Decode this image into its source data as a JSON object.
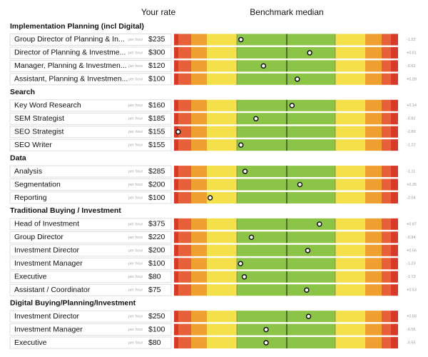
{
  "chart_data": {
    "type": "benchmark-table",
    "header": {
      "rate": "Your rate",
      "benchmark": "Benchmark median"
    },
    "xlim": [
      -3,
      3
    ],
    "unit": "per hour",
    "sections": [
      {
        "title": "Implementation Planning (incl Digital)",
        "rows": [
          {
            "role": "Group Director of Planning & In...",
            "rate": "$235",
            "score": -1.22,
            "score_label": "-1.22"
          },
          {
            "role": "Director of Planning & Investme...",
            "rate": "$300",
            "score": 0.61,
            "score_label": "+0.61"
          },
          {
            "role": "Manager, Planning & Investmen...",
            "rate": "$120",
            "score": -0.62,
            "score_label": "-0.62"
          },
          {
            "role": "Assistant, Planning & Investmen...",
            "rate": "$100",
            "score": 0.28,
            "score_label": "+0.28"
          }
        ]
      },
      {
        "title": "Search",
        "rows": [
          {
            "role": "Key Word Research",
            "rate": "$160",
            "score": 0.14,
            "score_label": "+0.14"
          },
          {
            "role": "SEM Strategist",
            "rate": "$185",
            "score": -0.82,
            "score_label": "-0.82"
          },
          {
            "role": "SEO Strategist",
            "rate": "$155",
            "score": -2.89,
            "score_label": "-2.89"
          },
          {
            "role": "SEO Writer",
            "rate": "$155",
            "score": -1.22,
            "score_label": "-1.22"
          }
        ]
      },
      {
        "title": "Data",
        "rows": [
          {
            "role": "Analysis",
            "rate": "$285",
            "score": -1.11,
            "score_label": "-1.11"
          },
          {
            "role": "Segmentation",
            "rate": "$200",
            "score": 0.35,
            "score_label": "+0.35"
          },
          {
            "role": "Reporting",
            "rate": "$100",
            "score": -2.04,
            "score_label": "-2.04"
          }
        ]
      },
      {
        "title": "Traditional Buying / Investment",
        "rows": [
          {
            "role": "Head of Investment",
            "rate": "$375",
            "score": 0.87,
            "score_label": "+0.87"
          },
          {
            "role": "Group Director",
            "rate": "$220",
            "score": -0.94,
            "score_label": "-0.94"
          },
          {
            "role": "Investment Director",
            "rate": "$200",
            "score": 0.56,
            "score_label": "+0.56"
          },
          {
            "role": "Investment Manager",
            "rate": "$100",
            "score": -1.23,
            "score_label": "-1.23"
          },
          {
            "role": "Executive",
            "rate": "$80",
            "score": -1.13,
            "score_label": "-1.13"
          },
          {
            "role": "Assistant / Coordinator",
            "rate": "$75",
            "score": 0.53,
            "score_label": "+0.53"
          }
        ]
      },
      {
        "title": "Digital Buying/Planning/Investment",
        "rows": [
          {
            "role": "Investment Director",
            "rate": "$250",
            "score": 0.58,
            "score_label": "+0.58"
          },
          {
            "role": "Investment Manager",
            "rate": "$100",
            "score": -0.55,
            "score_label": "-0.55"
          },
          {
            "role": "Executive",
            "rate": "$80",
            "score": -0.55,
            "score_label": "-0.55"
          }
        ]
      }
    ]
  }
}
